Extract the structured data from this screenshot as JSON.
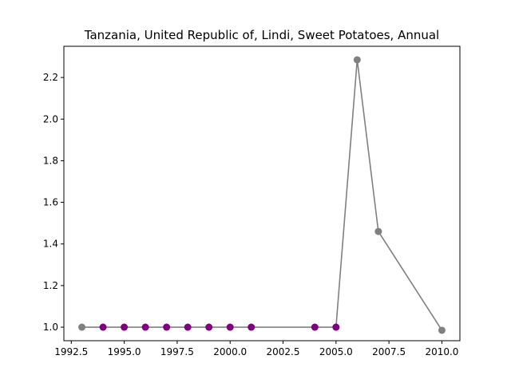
{
  "chart_data": {
    "type": "line",
    "title": "Tanzania, United Republic of, Lindi, Sweet Potatoes, Annual",
    "xlabel": "",
    "ylabel": "",
    "xlim": [
      1992.15,
      2010.85
    ],
    "ylim": [
      0.935,
      2.35
    ],
    "grid": false,
    "x_ticks": [
      {
        "value": 1992.5,
        "label": "1992.5"
      },
      {
        "value": 1995.0,
        "label": "1995.0"
      },
      {
        "value": 1997.5,
        "label": "1997.5"
      },
      {
        "value": 2000.0,
        "label": "2000.0"
      },
      {
        "value": 2002.5,
        "label": "2002.5"
      },
      {
        "value": 2005.0,
        "label": "2005.0"
      },
      {
        "value": 2007.5,
        "label": "2007.5"
      },
      {
        "value": 2010.0,
        "label": "2010.0"
      }
    ],
    "y_ticks": [
      {
        "value": 1.0,
        "label": "1.0"
      },
      {
        "value": 1.2,
        "label": "1.2"
      },
      {
        "value": 1.4,
        "label": "1.4"
      },
      {
        "value": 1.6,
        "label": "1.6"
      },
      {
        "value": 1.8,
        "label": "1.8"
      },
      {
        "value": 2.0,
        "label": "2.0"
      },
      {
        "value": 2.2,
        "label": "2.2"
      }
    ],
    "line_color": "#808080",
    "points": [
      {
        "x": 1993,
        "y": 1.0,
        "color": "#808080"
      },
      {
        "x": 1994,
        "y": 1.0,
        "color": "#800080"
      },
      {
        "x": 1995,
        "y": 1.0,
        "color": "#800080"
      },
      {
        "x": 1996,
        "y": 1.0,
        "color": "#800080"
      },
      {
        "x": 1997,
        "y": 1.0,
        "color": "#800080"
      },
      {
        "x": 1998,
        "y": 1.0,
        "color": "#800080"
      },
      {
        "x": 1999,
        "y": 1.0,
        "color": "#800080"
      },
      {
        "x": 2000,
        "y": 1.0,
        "color": "#800080"
      },
      {
        "x": 2001,
        "y": 1.0,
        "color": "#800080"
      },
      {
        "x": 2004,
        "y": 1.0,
        "color": "#800080"
      },
      {
        "x": 2005,
        "y": 1.0,
        "color": "#800080"
      },
      {
        "x": 2006,
        "y": 2.285,
        "color": "#808080"
      },
      {
        "x": 2007,
        "y": 1.46,
        "color": "#808080"
      },
      {
        "x": 2010,
        "y": 0.985,
        "color": "#808080"
      }
    ]
  }
}
